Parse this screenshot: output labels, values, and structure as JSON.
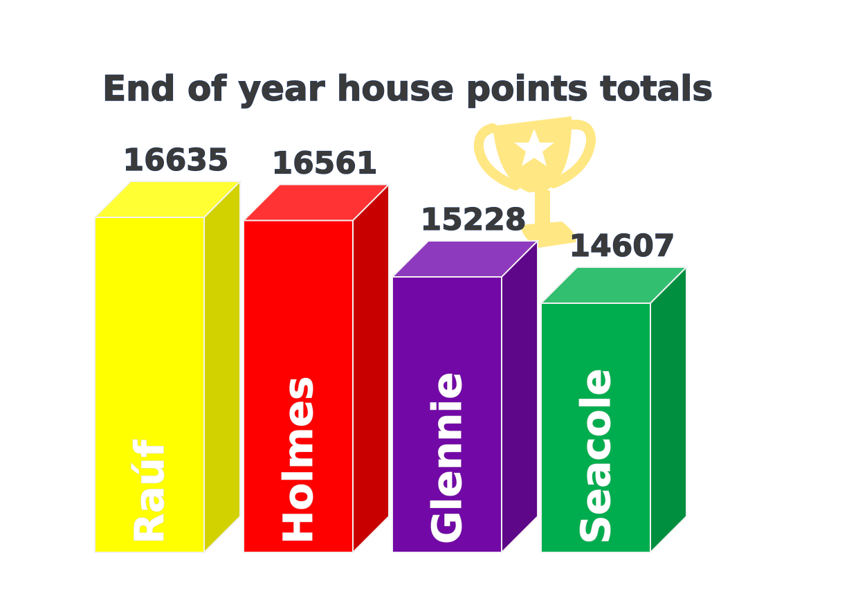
{
  "chart_data": {
    "type": "bar",
    "title": "End of year house points totals",
    "categories": [
      "Raúf",
      "Holmes",
      "Glennie",
      "Seacole"
    ],
    "values": [
      16635,
      16561,
      15228,
      14607
    ],
    "colors": {
      "front": [
        "#ffff00",
        "#ff0000",
        "#7209a6",
        "#00ad4e"
      ],
      "top": [
        "#ffff33",
        "#ff3333",
        "#8e3abf",
        "#33bf70"
      ],
      "side": [
        "#d2d200",
        "#c80000",
        "#5e0788",
        "#008f3f"
      ]
    },
    "ylim": [
      0,
      16635
    ],
    "grid": false,
    "legend": "none"
  },
  "decoration": {
    "trophy_icon": "trophy-icon",
    "trophy_color": "#ffe36e"
  }
}
